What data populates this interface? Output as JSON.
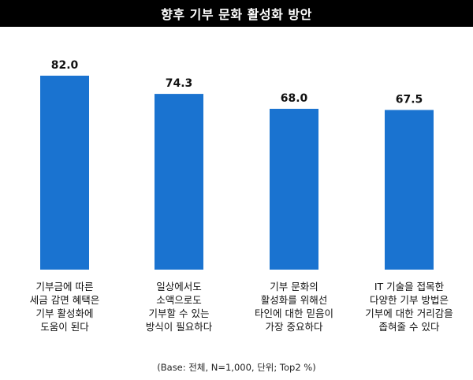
{
  "chart_data": {
    "type": "bar",
    "title": "향후 기부 문화 활성화 방안",
    "categories": [
      [
        "기부금에 따른",
        "세금 감면 혜택은",
        "기부 활성화에",
        "도움이 된다"
      ],
      [
        "일상에서도",
        "소액으로도",
        "기부할 수 있는",
        "방식이 필요하다"
      ],
      [
        "기부 문화의",
        "활성화를 위해선",
        "타인에 대한 믿음이",
        "가장 중요하다"
      ],
      [
        "IT 기술을 접목한",
        "다양한 기부 방법은",
        "기부에 대한 거리감을",
        "좁혀줄 수 있다"
      ]
    ],
    "values": [
      82.0,
      74.3,
      68.0,
      67.5
    ],
    "value_labels": [
      "82.0",
      "74.3",
      "68.0",
      "67.5"
    ],
    "ylim": [
      0,
      100
    ],
    "bar_color": "#1a73d0",
    "grid": false,
    "note": "(Base: 전체, N=1,000, 단위; Top2 %)"
  }
}
